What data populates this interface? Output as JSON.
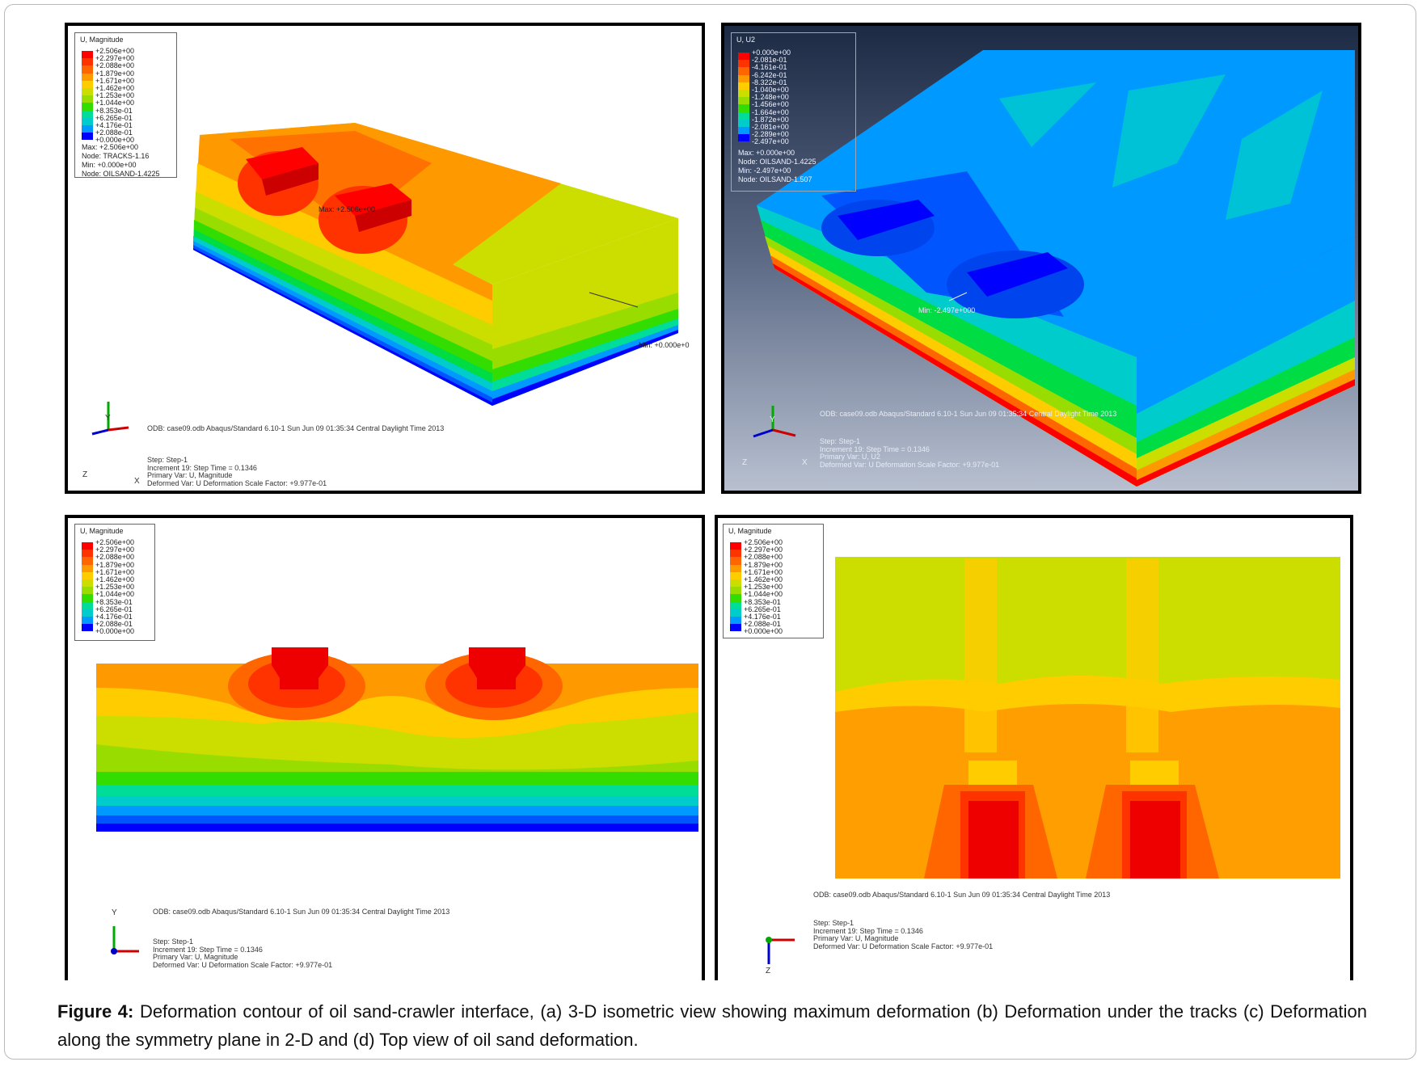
{
  "caption": {
    "label": "Figure 4:",
    "text": "Deformation contour of oil sand-crawler interface, (a) 3-D isometric view showing maximum deformation (b) Deformation under the tracks (c) Deformation along the symmetry plane in 2-D and (d) Top view of oil sand deformation."
  },
  "palette": [
    "#ff0000",
    "#ff3300",
    "#ff6600",
    "#ff9900",
    "#ffcc00",
    "#ccdd00",
    "#99dd00",
    "#33dd00",
    "#00dd44",
    "#00dd99",
    "#00cccc",
    "#0099ff",
    "#0055ff",
    "#0000ff"
  ],
  "panels": {
    "a": {
      "legend_title": "U, Magnitude",
      "values": [
        "+2.506e+00",
        "+2.297e+00",
        "+2.088e+00",
        "+1.879e+00",
        "+1.671e+00",
        "+1.462e+00",
        "+1.253e+00",
        "+1.044e+00",
        "+8.353e-01",
        "+6.265e-01",
        "+4.176e-01",
        "+2.088e-01",
        "+0.000e+00"
      ],
      "max_label": "Max: +2.506e+00",
      "max_node": "Node: TRACKS-1.16",
      "min_label": "Min: +0.000e+00",
      "min_node": "Node: OILSAND-1.4225",
      "max_annot": "Max: +2.506e+00",
      "min_annot": "Min: +0.000e+0",
      "odb_line": "ODB: case09.odb    Abaqus/Standard 6.10-1    Sun Jun 09 01:35:34 Central Daylight Time 2013",
      "step": "Step: Step-1",
      "increment": "Increment     19: Step Time =    0.1346",
      "primary": "Primary Var: U, Magnitude",
      "deformed": "Deformed Var: U   Deformation Scale Factor: +9.977e-01",
      "axis_x": "X",
      "axis_y": "Y",
      "axis_z": "Z"
    },
    "b": {
      "legend_title": "U, U2",
      "values": [
        "+0.000e+00",
        "-2.081e-01",
        "-4.161e-01",
        "-6.242e-01",
        "-8.322e-01",
        "-1.040e+00",
        "-1.248e+00",
        "-1.456e+00",
        "-1.664e+00",
        "-1.872e+00",
        "-2.081e+00",
        "-2.289e+00",
        "-2.497e+00"
      ],
      "max_label": "Max: +0.000e+00",
      "max_node": "Node: OILSAND-1.4225",
      "min_label": "Min: -2.497e+00",
      "min_node": "Node: OILSAND-1.507",
      "min_annot": "Min: -2.497e+000",
      "odb_line": "ODB: case09.odb    Abaqus/Standard 6.10-1    Sun Jun 09 01:35:34 Central Daylight Time 2013",
      "step": "Step: Step-1",
      "increment": "Increment     19: Step Time =    0.1346",
      "primary": "Primary Var: U, U2",
      "deformed": "Deformed Var: U   Deformation Scale Factor: +9.977e-01",
      "axis_x": "X",
      "axis_y": "Y",
      "axis_z": "Z"
    },
    "c": {
      "legend_title": "U, Magnitude",
      "values": [
        "+2.506e+00",
        "+2.297e+00",
        "+2.088e+00",
        "+1.879e+00",
        "+1.671e+00",
        "+1.462e+00",
        "+1.253e+00",
        "+1.044e+00",
        "+8.353e-01",
        "+6.265e-01",
        "+4.176e-01",
        "+2.088e-01",
        "+0.000e+00"
      ],
      "odb_line": "ODB: case09.odb    Abaqus/Standard 6.10-1    Sun Jun 09 01:35:34 Central Daylight Time 2013",
      "step": "Step: Step-1",
      "increment": "Increment     19: Step Time =    0.1346",
      "primary": "Primary Var: U, Magnitude",
      "deformed": "Deformed Var: U   Deformation Scale Factor: +9.977e-01",
      "axis_y": "Y"
    },
    "d": {
      "legend_title": "U, Magnitude",
      "values": [
        "+2.506e+00",
        "+2.297e+00",
        "+2.088e+00",
        "+1.879e+00",
        "+1.671e+00",
        "+1.462e+00",
        "+1.253e+00",
        "+1.044e+00",
        "+8.353e-01",
        "+6.265e-01",
        "+4.176e-01",
        "+2.088e-01",
        "+0.000e+00"
      ],
      "odb_line": "ODB: case09.odb    Abaqus/Standard 6.10-1    Sun Jun 09 01:35:34 Central Daylight Time 2013",
      "step": "Step: Step-1",
      "increment": "Increment     19: Step Time =    0.1346",
      "primary": "Primary Var: U, Magnitude",
      "deformed": "Deformed Var: U   Deformation Scale Factor: +9.977e-01",
      "axis_z": "Z"
    }
  }
}
